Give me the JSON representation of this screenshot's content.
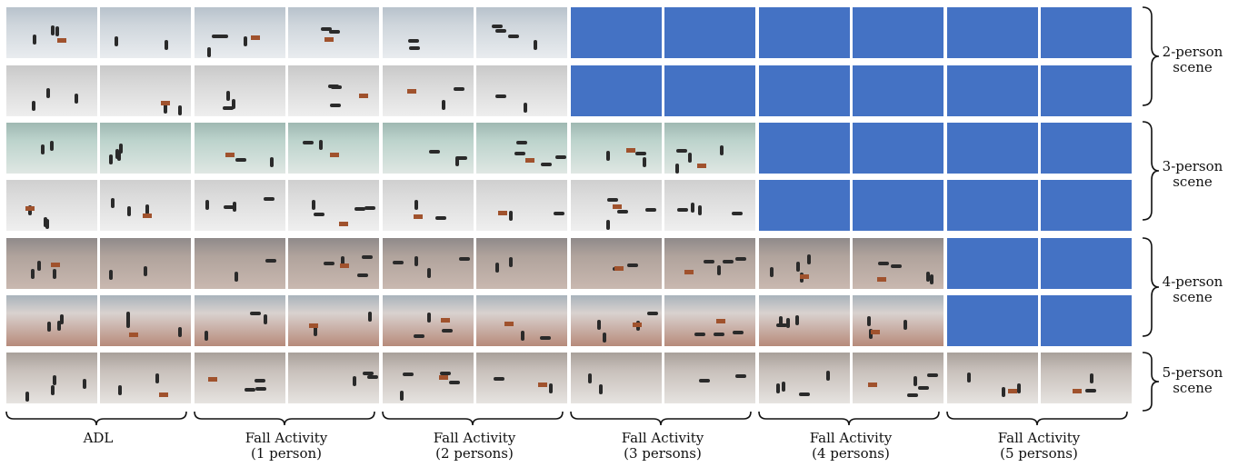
{
  "scene_groups": [
    {
      "line1": "2-person",
      "line2": "scene"
    },
    {
      "line1": "3-person",
      "line2": "scene"
    },
    {
      "line1": "4-person",
      "line2": "scene"
    },
    {
      "line1": "5-person",
      "line2": "scene"
    }
  ],
  "activity_groups": [
    {
      "line1": "ADL",
      "line2": ""
    },
    {
      "line1": "Fall Activity",
      "line2": "(1 person)"
    },
    {
      "line1": "Fall Activity",
      "line2": "(2 persons)"
    },
    {
      "line1": "Fall Activity",
      "line2": "(3 persons)"
    },
    {
      "line1": "Fall Activity",
      "line2": "(4 persons)"
    },
    {
      "line1": "Fall Activity",
      "line2": "(5 persons)"
    }
  ],
  "placeholder_color": "#4472c4",
  "rows_photo_columns": [
    6,
    6,
    8,
    8,
    10,
    10,
    12
  ]
}
